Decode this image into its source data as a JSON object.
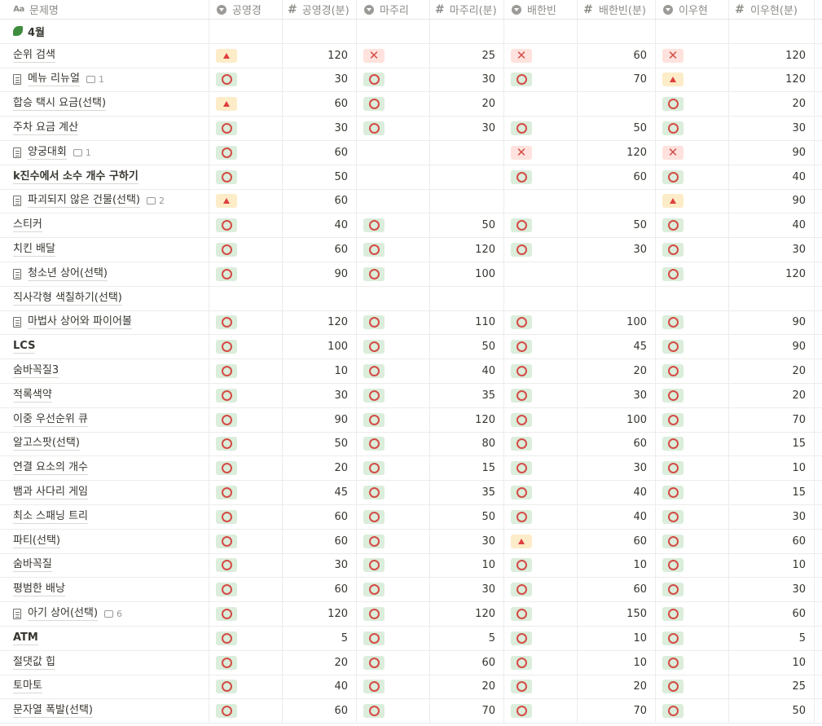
{
  "headers": {
    "name": "문제명",
    "s1": "공영경",
    "n1": "공영경(분)",
    "s2": "마주리",
    "n2": "마주리(분)",
    "s3": "배한빈",
    "n3": "배한빈(분)",
    "s4": "이우현",
    "n4": "이우현(분)"
  },
  "group": {
    "label": "4월",
    "icon": "leaf-icon"
  },
  "status_colors": {
    "pass": "#dbeddb",
    "fail": "#ffe2dd",
    "partial": "#fdecc8",
    "symbol": "#d44c47"
  },
  "rows": [
    {
      "name": "순위 검색",
      "page": false,
      "comments": "",
      "s1": "part",
      "n1": "120",
      "s2": "fail",
      "n2": "25",
      "s3": "fail",
      "n3": "60",
      "s4": "fail",
      "n4": "120"
    },
    {
      "name": "메뉴 리뉴얼",
      "page": true,
      "comments": "1",
      "s1": "pass",
      "n1": "30",
      "s2": "pass",
      "n2": "30",
      "s3": "pass",
      "n3": "70",
      "s4": "part",
      "n4": "120"
    },
    {
      "name": "합승 택시 요금(선택)",
      "page": false,
      "comments": "",
      "s1": "part",
      "n1": "60",
      "s2": "pass",
      "n2": "20",
      "s3": "",
      "n3": "",
      "s4": "pass",
      "n4": "20"
    },
    {
      "name": "주차 요금 계산",
      "page": false,
      "comments": "",
      "s1": "pass",
      "n1": "30",
      "s2": "pass",
      "n2": "30",
      "s3": "pass",
      "n3": "50",
      "s4": "pass",
      "n4": "30"
    },
    {
      "name": "양궁대회",
      "page": true,
      "comments": "1",
      "s1": "pass",
      "n1": "60",
      "s2": "",
      "n2": "",
      "s3": "fail",
      "n3": "120",
      "s4": "fail",
      "n4": "90"
    },
    {
      "name": "k진수에서 소수 개수 구하기",
      "page": false,
      "comments": "",
      "s1": "pass",
      "n1": "50",
      "s2": "",
      "n2": "",
      "s3": "pass",
      "n3": "60",
      "s4": "pass",
      "n4": "40"
    },
    {
      "name": "파괴되지 않은 건물(선택)",
      "page": true,
      "comments": "2",
      "s1": "part",
      "n1": "60",
      "s2": "",
      "n2": "",
      "s3": "",
      "n3": "",
      "s4": "part",
      "n4": "90"
    },
    {
      "name": "스티커",
      "page": false,
      "comments": "",
      "s1": "pass",
      "n1": "40",
      "s2": "pass",
      "n2": "50",
      "s3": "pass",
      "n3": "50",
      "s4": "pass",
      "n4": "40"
    },
    {
      "name": "치킨 배달",
      "page": false,
      "comments": "",
      "s1": "pass",
      "n1": "60",
      "s2": "pass",
      "n2": "120",
      "s3": "pass",
      "n3": "30",
      "s4": "pass",
      "n4": "30"
    },
    {
      "name": "청소년 상어(선택)",
      "page": true,
      "comments": "",
      "s1": "pass",
      "n1": "90",
      "s2": "pass",
      "n2": "100",
      "s3": "",
      "n3": "",
      "s4": "pass",
      "n4": "120"
    },
    {
      "name": "직사각형 색칠하기(선택)",
      "page": false,
      "comments": "",
      "s1": "",
      "n1": "",
      "s2": "",
      "n2": "",
      "s3": "",
      "n3": "",
      "s4": "",
      "n4": ""
    },
    {
      "name": "마법사 상어와 파이어볼",
      "page": true,
      "comments": "",
      "s1": "pass",
      "n1": "120",
      "s2": "pass",
      "n2": "110",
      "s3": "pass",
      "n3": "100",
      "s4": "pass",
      "n4": "90"
    },
    {
      "name": "LCS",
      "page": false,
      "comments": "",
      "s1": "pass",
      "n1": "100",
      "s2": "pass",
      "n2": "50",
      "s3": "pass",
      "n3": "45",
      "s4": "pass",
      "n4": "90"
    },
    {
      "name": "숨바꼭질3",
      "page": false,
      "comments": "",
      "s1": "pass",
      "n1": "10",
      "s2": "pass",
      "n2": "40",
      "s3": "pass",
      "n3": "20",
      "s4": "pass",
      "n4": "20"
    },
    {
      "name": "적록색약",
      "page": false,
      "comments": "",
      "s1": "pass",
      "n1": "30",
      "s2": "pass",
      "n2": "35",
      "s3": "pass",
      "n3": "30",
      "s4": "pass",
      "n4": "20"
    },
    {
      "name": "이중 우선순위 큐",
      "page": false,
      "comments": "",
      "s1": "pass",
      "n1": "90",
      "s2": "pass",
      "n2": "120",
      "s3": "pass",
      "n3": "100",
      "s4": "pass",
      "n4": "70"
    },
    {
      "name": "알고스팟(선택)",
      "page": false,
      "comments": "",
      "s1": "pass",
      "n1": "50",
      "s2": "pass",
      "n2": "80",
      "s3": "pass",
      "n3": "60",
      "s4": "pass",
      "n4": "15"
    },
    {
      "name": "연결 요소의 개수",
      "page": false,
      "comments": "",
      "s1": "pass",
      "n1": "20",
      "s2": "pass",
      "n2": "15",
      "s3": "pass",
      "n3": "30",
      "s4": "pass",
      "n4": "10"
    },
    {
      "name": "뱀과 사다리 게임",
      "page": false,
      "comments": "",
      "s1": "pass",
      "n1": "45",
      "s2": "pass",
      "n2": "35",
      "s3": "pass",
      "n3": "40",
      "s4": "pass",
      "n4": "15"
    },
    {
      "name": "최소 스패닝 트리",
      "page": false,
      "comments": "",
      "s1": "pass",
      "n1": "60",
      "s2": "pass",
      "n2": "50",
      "s3": "pass",
      "n3": "40",
      "s4": "pass",
      "n4": "30"
    },
    {
      "name": "파티(선택)",
      "page": false,
      "comments": "",
      "s1": "pass",
      "n1": "60",
      "s2": "pass",
      "n2": "30",
      "s3": "part",
      "n3": "60",
      "s4": "pass",
      "n4": "60"
    },
    {
      "name": "숨바꼭질",
      "page": false,
      "comments": "",
      "s1": "pass",
      "n1": "30",
      "s2": "pass",
      "n2": "10",
      "s3": "pass",
      "n3": "10",
      "s4": "pass",
      "n4": "10"
    },
    {
      "name": "평범한 배낭",
      "page": false,
      "comments": "",
      "s1": "pass",
      "n1": "60",
      "s2": "pass",
      "n2": "30",
      "s3": "pass",
      "n3": "60",
      "s4": "pass",
      "n4": "30"
    },
    {
      "name": "아기 상어(선택)",
      "page": true,
      "comments": "6",
      "s1": "pass",
      "n1": "120",
      "s2": "pass",
      "n2": "120",
      "s3": "pass",
      "n3": "150",
      "s4": "pass",
      "n4": "60"
    },
    {
      "name": "ATM",
      "page": false,
      "comments": "",
      "s1": "pass",
      "n1": "5",
      "s2": "pass",
      "n2": "5",
      "s3": "pass",
      "n3": "10",
      "s4": "pass",
      "n4": "5"
    },
    {
      "name": "절댓값 힙",
      "page": false,
      "comments": "",
      "s1": "pass",
      "n1": "20",
      "s2": "pass",
      "n2": "60",
      "s3": "pass",
      "n3": "10",
      "s4": "pass",
      "n4": "10"
    },
    {
      "name": "토마토",
      "page": false,
      "comments": "",
      "s1": "pass",
      "n1": "40",
      "s2": "pass",
      "n2": "20",
      "s3": "pass",
      "n3": "20",
      "s4": "pass",
      "n4": "25"
    },
    {
      "name": "문자열 폭발(선택)",
      "page": false,
      "comments": "",
      "s1": "pass",
      "n1": "60",
      "s2": "pass",
      "n2": "70",
      "s3": "pass",
      "n3": "70",
      "s4": "pass",
      "n4": "50"
    }
  ]
}
